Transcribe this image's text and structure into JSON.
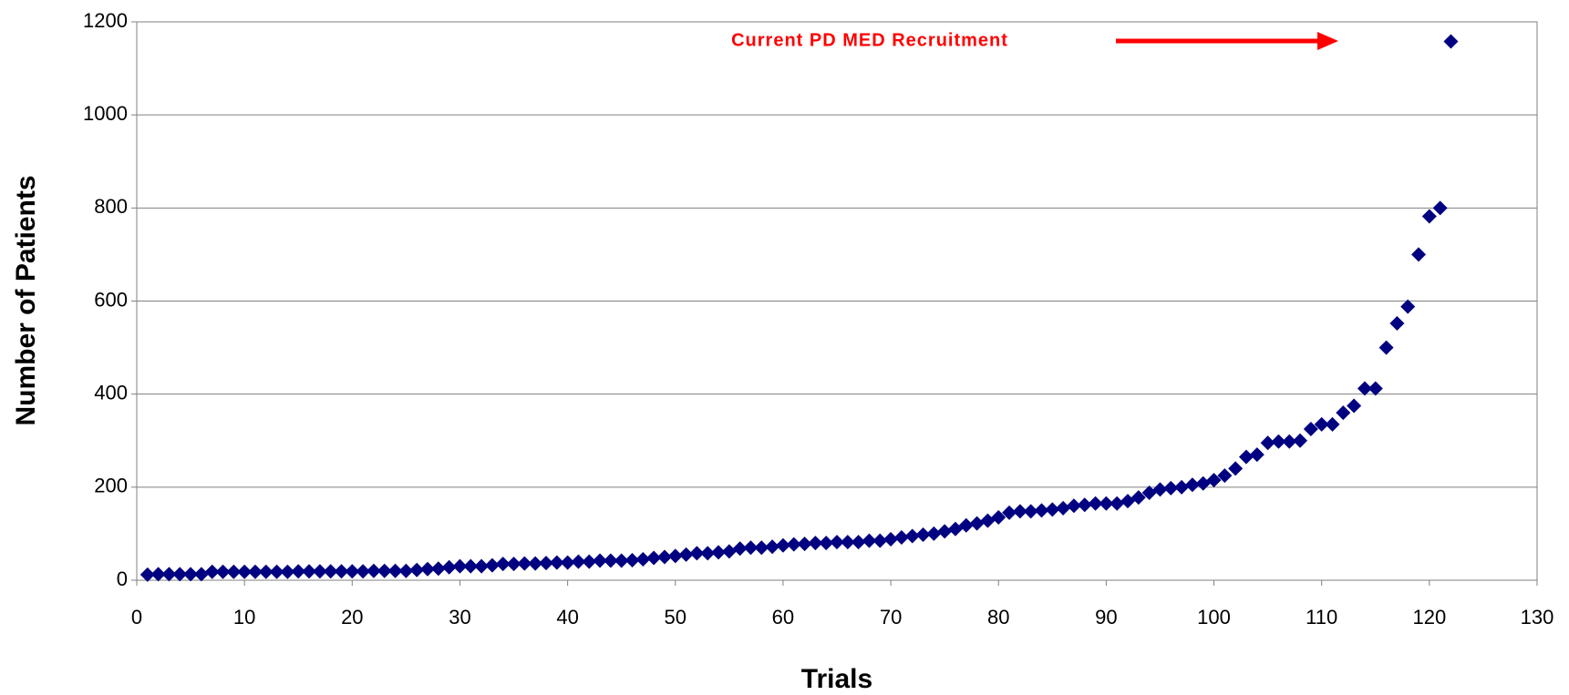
{
  "chart_data": {
    "type": "scatter",
    "xlabel": "Trials",
    "ylabel": "Number of Patients",
    "annotation": "Current PD MED Recruitment",
    "color": "#000080",
    "x": [
      1,
      2,
      3,
      4,
      5,
      6,
      7,
      8,
      9,
      10,
      11,
      12,
      13,
      14,
      15,
      16,
      17,
      18,
      19,
      20,
      21,
      22,
      23,
      24,
      25,
      26,
      27,
      28,
      29,
      30,
      31,
      32,
      33,
      34,
      35,
      36,
      37,
      38,
      39,
      40,
      41,
      42,
      43,
      44,
      45,
      46,
      47,
      48,
      49,
      50,
      51,
      52,
      53,
      54,
      55,
      56,
      57,
      58,
      59,
      60,
      61,
      62,
      63,
      64,
      65,
      66,
      67,
      68,
      69,
      70,
      71,
      72,
      73,
      74,
      75,
      76,
      77,
      78,
      79,
      80,
      81,
      82,
      83,
      84,
      85,
      86,
      87,
      88,
      89,
      90,
      91,
      92,
      93,
      94,
      95,
      96,
      97,
      98,
      99,
      100,
      101,
      102,
      103,
      104,
      105,
      106,
      107,
      108,
      109,
      110,
      111,
      112,
      113,
      114,
      115,
      116,
      117,
      118,
      119,
      120,
      121,
      122
    ],
    "values": [
      12,
      13,
      13,
      13,
      13,
      13,
      18,
      18,
      18,
      18,
      18,
      18,
      18,
      18,
      19,
      19,
      19,
      19,
      19,
      19,
      19,
      20,
      20,
      20,
      20,
      22,
      24,
      25,
      28,
      30,
      30,
      30,
      32,
      35,
      35,
      36,
      36,
      37,
      38,
      38,
      40,
      40,
      42,
      42,
      42,
      43,
      45,
      48,
      50,
      52,
      55,
      58,
      58,
      60,
      62,
      68,
      70,
      70,
      72,
      75,
      77,
      78,
      80,
      80,
      82,
      82,
      82,
      85,
      85,
      88,
      92,
      95,
      98,
      100,
      105,
      110,
      118,
      122,
      128,
      135,
      145,
      148,
      148,
      150,
      152,
      155,
      160,
      162,
      165,
      165,
      165,
      170,
      178,
      188,
      195,
      198,
      200,
      205,
      208,
      215,
      225,
      240,
      265,
      270,
      295,
      298,
      298,
      300,
      325,
      335,
      335,
      360,
      375,
      412,
      412,
      500,
      552,
      588,
      700,
      782,
      800,
      1158
    ],
    "xlim": [
      0,
      130
    ],
    "xticks": [
      0,
      10,
      20,
      30,
      40,
      50,
      60,
      70,
      80,
      90,
      100,
      110,
      120,
      130
    ],
    "ylim": [
      0,
      1200
    ],
    "yticks": [
      0,
      200,
      400,
      600,
      800,
      1000,
      1200
    ],
    "grid": true
  }
}
